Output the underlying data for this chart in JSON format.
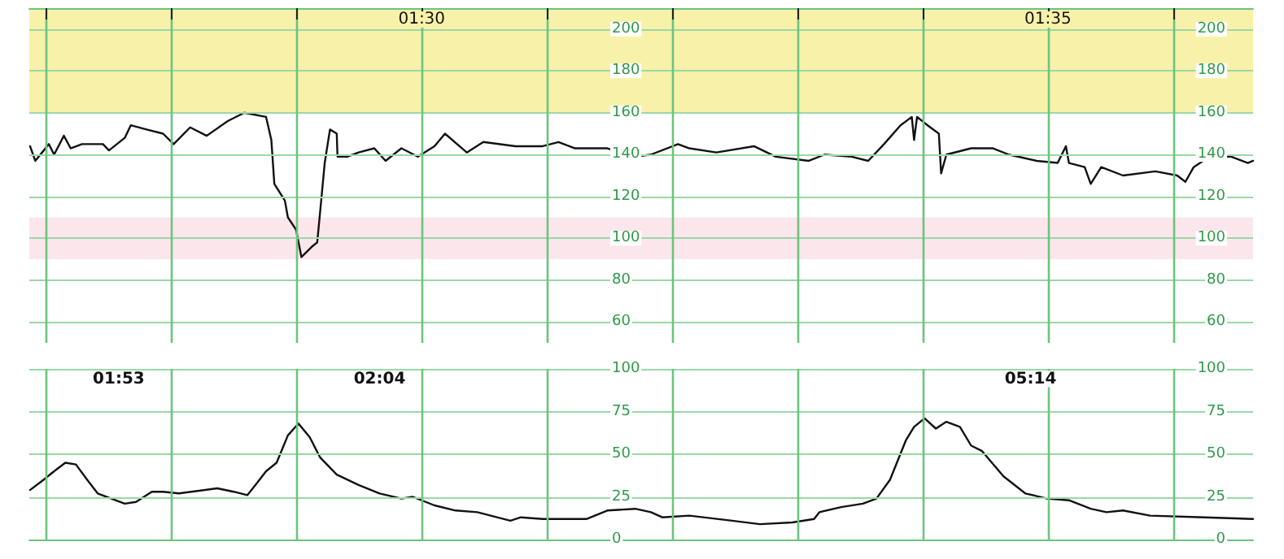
{
  "chart_data": [
    {
      "type": "line",
      "xlim": [
        1.4478,
        1.6106
      ],
      "xticks": [
        {
          "value": 1.45,
          "label": null
        },
        {
          "value": 1.4667,
          "label": null
        },
        {
          "value": 1.4833,
          "label": null
        },
        {
          "value": 1.5,
          "label": "01:30"
        },
        {
          "value": 1.5167,
          "label": null
        },
        {
          "value": 1.5333,
          "label": null
        },
        {
          "value": 1.55,
          "label": null
        },
        {
          "value": 1.5667,
          "label": null
        },
        {
          "value": 1.5833,
          "label": "01:35"
        },
        {
          "value": 1.6,
          "label": null
        }
      ],
      "ylim": [
        50,
        210
      ],
      "yticks": [
        60,
        80,
        100,
        120,
        140,
        160,
        180,
        200
      ],
      "y2lim": [
        50,
        210
      ],
      "y2ticks": [
        60,
        80,
        100,
        120,
        140,
        160,
        180,
        200
      ],
      "bands": [
        {
          "axis": "y",
          "from": 160,
          "to": 210,
          "color": "#f8f1aa"
        },
        {
          "axis": "y",
          "from": 90,
          "to": 110,
          "color": "#fbe6ec"
        }
      ],
      "grid": true,
      "marker": "none",
      "line_style": "solid",
      "series": [
        {
          "color": "#111111",
          "x": [
            1.4479,
            1.4486,
            1.4504,
            1.4511,
            1.4524,
            1.4533,
            1.4548,
            1.4576,
            1.4584,
            1.4605,
            1.4613,
            1.4634,
            1.4656,
            1.467,
            1.4692,
            1.4714,
            1.4742,
            1.4764,
            1.4793,
            1.48,
            1.4804,
            1.4811,
            1.4818,
            1.4822,
            1.4833,
            1.484,
            1.4854,
            1.4861,
            1.4865,
            1.4871,
            1.4878,
            1.4887,
            1.4888,
            1.4901,
            1.4916,
            1.4937,
            1.4952,
            1.4973,
            1.4995,
            1.5017,
            1.5031,
            1.506,
            1.5082,
            1.5125,
            1.5161,
            1.5182,
            1.5204,
            1.5247,
            1.5284,
            1.5305,
            1.5341,
            1.5356,
            1.5392,
            1.5442,
            1.5471,
            1.5515,
            1.5536,
            1.5572,
            1.5594,
            1.5615,
            1.5637,
            1.5652,
            1.5655,
            1.5659,
            1.5673,
            1.5688,
            1.5691,
            1.5698,
            1.5731,
            1.576,
            1.5781,
            1.5818,
            1.5846,
            1.5857,
            1.5861,
            1.5882,
            1.589,
            1.5904,
            1.5933,
            1.5976,
            1.6005,
            1.6016,
            1.6027,
            1.6048,
            1.6077,
            1.6099,
            1.6106
          ],
          "values": [
            144,
            137,
            145,
            140,
            149,
            143,
            145,
            145,
            142,
            148,
            154,
            152,
            150,
            145,
            153,
            149,
            156,
            160,
            158,
            147,
            126,
            122,
            118,
            110,
            104,
            91,
            96,
            98,
            113,
            136,
            152,
            150,
            139,
            139,
            141,
            143,
            137,
            143,
            139,
            144,
            150,
            141,
            146,
            144,
            144,
            146,
            143,
            143,
            139,
            140,
            145,
            143,
            141,
            144,
            139,
            137,
            140,
            139,
            137,
            145,
            154,
            158,
            147,
            158,
            154,
            150,
            131,
            140,
            143,
            143,
            140,
            137,
            136,
            144,
            136,
            134,
            126,
            134,
            130,
            132,
            130,
            127,
            134,
            139,
            139,
            136,
            137
          ]
        }
      ]
    },
    {
      "type": "line",
      "xlim": [
        1.4478,
        1.6106
      ],
      "xticks": [
        {
          "value": 1.45,
          "label": null
        },
        {
          "value": 1.4667,
          "label": null
        },
        {
          "value": 1.4833,
          "label": null
        },
        {
          "value": 1.5,
          "label": null
        },
        {
          "value": 1.5167,
          "label": null
        },
        {
          "value": 1.5333,
          "label": null
        },
        {
          "value": 1.55,
          "label": null
        },
        {
          "value": 1.5667,
          "label": null
        },
        {
          "value": 1.5833,
          "label": null
        },
        {
          "value": 1.6,
          "label": null
        }
      ],
      "ylim": [
        0,
        100
      ],
      "yticks": [
        0,
        25,
        50,
        75,
        100
      ],
      "y2lim": [
        0,
        100
      ],
      "y2ticks": [
        0,
        25,
        50,
        75,
        100
      ],
      "tick_labels": "y",
      "grid": true,
      "marker": "none",
      "line_style": "solid",
      "annotations": [
        {
          "text": "01:53",
          "x": 1.4597,
          "y": 94
        },
        {
          "text": "02:04",
          "x": 1.4944,
          "y": 94
        },
        {
          "text": "05:14",
          "x": 1.581,
          "y": 94
        }
      ],
      "series": [
        {
          "color": "#111111",
          "x": [
            1.4479,
            1.4497,
            1.4511,
            1.4526,
            1.454,
            1.4555,
            1.4569,
            1.4605,
            1.462,
            1.4641,
            1.4656,
            1.4677,
            1.4728,
            1.475,
            1.4768,
            1.4779,
            1.4793,
            1.4807,
            1.4822,
            1.4836,
            1.4851,
            1.4865,
            1.4887,
            1.4916,
            1.4944,
            1.4973,
            1.4988,
            1.5017,
            1.5045,
            1.5074,
            1.5118,
            1.5132,
            1.5161,
            1.5219,
            1.5247,
            1.5284,
            1.5305,
            1.532,
            1.5356,
            1.5413,
            1.545,
            1.5493,
            1.5522,
            1.5529,
            1.5558,
            1.5587,
            1.5605,
            1.5623,
            1.5644,
            1.5655,
            1.5669,
            1.5684,
            1.5698,
            1.5716,
            1.5731,
            1.5745,
            1.5774,
            1.5803,
            1.5832,
            1.5861,
            1.589,
            1.5911,
            1.5933,
            1.5969,
            1.6041,
            1.6106
          ],
          "values": [
            29,
            35,
            40,
            45,
            44,
            35,
            27,
            21,
            22,
            28,
            28,
            27,
            30,
            28,
            26,
            32,
            40,
            45,
            61,
            68,
            60,
            48,
            38,
            32,
            27,
            24,
            25,
            20,
            17,
            16,
            11,
            13,
            12,
            12,
            17,
            18,
            16,
            13,
            14,
            11,
            9,
            10,
            12,
            16,
            19,
            21,
            24,
            35,
            58,
            66,
            71,
            65,
            69,
            66,
            55,
            52,
            37,
            27,
            24,
            23,
            18,
            16,
            17,
            14,
            13,
            12
          ]
        }
      ]
    }
  ]
}
